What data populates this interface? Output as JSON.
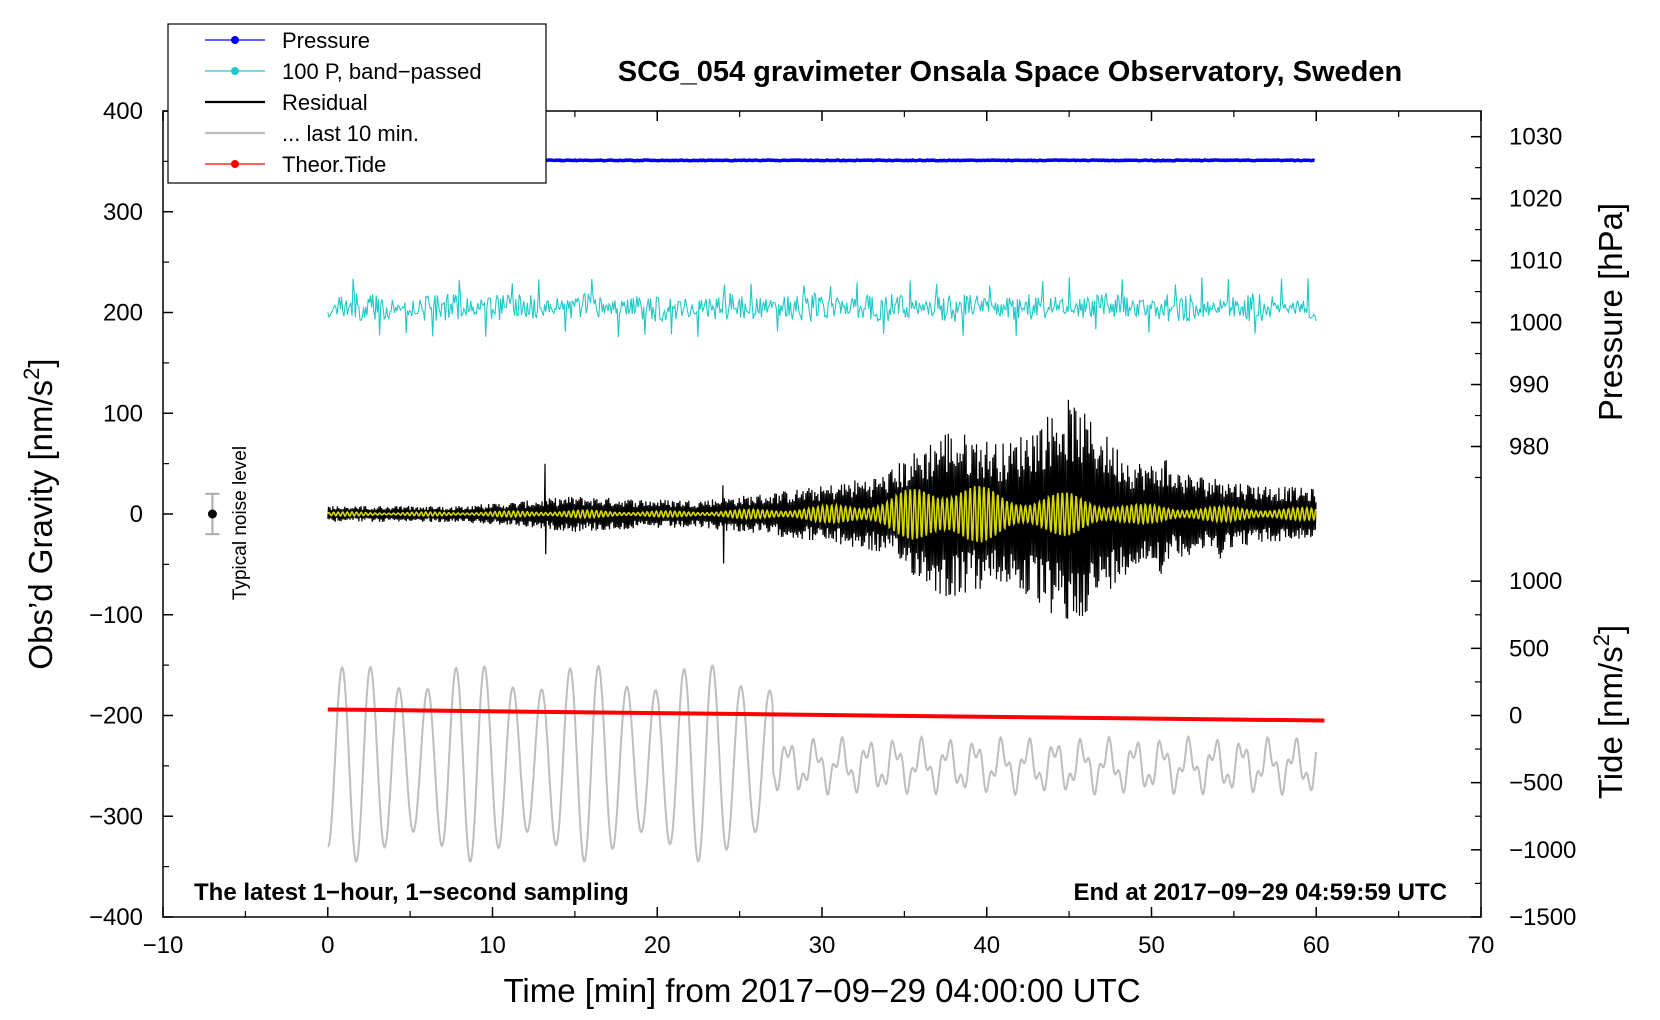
{
  "chart_data": {
    "type": "line",
    "title": "SCG_054 gravimeter Onsala Space Observatory, Sweden",
    "xlabel": "Time [min] from 2017−09−29 04:00:00 UTC",
    "ylabel": "Obs’d Gravity [nm/s²]",
    "ylabel_main": "Obs’d Gravity [nm/s",
    "ylabel_sup": "2",
    "ylabel_close": "]",
    "right_label_pressure": "Pressure [hPa]",
    "right_label_tide_main": "Tide [nm/s",
    "right_label_tide_sup": "2",
    "right_label_tide_close": "]",
    "xlim": [
      -10,
      70
    ],
    "ylim": [
      -400,
      400
    ],
    "x_ticks": [
      -10,
      0,
      10,
      20,
      30,
      40,
      50,
      60,
      70
    ],
    "x_tick_labels": [
      "−10",
      "0",
      "10",
      "20",
      "30",
      "40",
      "50",
      "60",
      "70"
    ],
    "y_ticks": [
      -400,
      -300,
      -200,
      -100,
      0,
      100,
      200,
      300,
      400
    ],
    "y_tick_labels": [
      "−400",
      "−300",
      "−200",
      "−100",
      "0",
      "100",
      "200",
      "300",
      "400"
    ],
    "pressure_axis": {
      "values": [
        980,
        990,
        1000,
        1010,
        1020,
        1030
      ],
      "labels": [
        "980",
        "990",
        "1000",
        "1010",
        "1020",
        "1030"
      ],
      "gravity_at_1000": 190,
      "gravity_per_hPa": 6.15
    },
    "tide_axis": {
      "values": [
        -1500,
        -1000,
        -500,
        0,
        500,
        1000
      ],
      "labels": [
        "−1500",
        "−1000",
        "−500",
        "0",
        "500",
        "1000"
      ],
      "gravity_at_0": -200,
      "gravity_per_unit": 0.1333
    },
    "legend": [
      {
        "label": "Pressure",
        "color": "#0000ff",
        "style": "line-dot"
      },
      {
        "label": "100 P, band−passed",
        "color": "#20c8c8",
        "style": "line-dot"
      },
      {
        "label": "Residual",
        "color": "#000000",
        "style": "line"
      },
      {
        "label": "... last 10 min.",
        "color": "#bebebe",
        "style": "line"
      },
      {
        "label": "Theor.Tide",
        "color": "#ff0000",
        "style": "line-dot"
      }
    ],
    "annotations": {
      "bottom_left": "The latest 1−hour, 1−second sampling",
      "bottom_right": "End at 2017−09−29 04:59:59 UTC",
      "noise_label": "Typical noise level"
    },
    "noise_bar": {
      "x": -7,
      "center": 0,
      "half_range": 20
    },
    "series": [
      {
        "name": "Pressure",
        "color": "#0000ff",
        "x_range": [
          0,
          60
        ],
        "gravity_level": 351
      },
      {
        "name": "100 P, band−passed",
        "color": "#20c8c8",
        "x_range": [
          0,
          60
        ],
        "center": 205,
        "typical_amplitude": 12,
        "max_dev": 30
      },
      {
        "name": "Residual",
        "color": "#000000",
        "x_range": [
          0,
          60
        ],
        "center": 0,
        "envelope_min": [
          0,
          10
        ],
        "envelope_amp": [
          8,
          8,
          8,
          12,
          18,
          15,
          14,
          20,
          28,
          40,
          85,
          70,
          115,
          55,
          40,
          30,
          25
        ]
      },
      {
        "name": "Residual filtered",
        "color": "#d7d700",
        "x_range": [
          0,
          60
        ],
        "center": 0,
        "envelope_amp": [
          2,
          2,
          2,
          3,
          4,
          3,
          3,
          5,
          8,
          15,
          40,
          20,
          22,
          10,
          8,
          7,
          6
        ]
      },
      {
        "name": "... last 10 min.",
        "color": "#bebebe",
        "x_range": [
          0,
          60
        ],
        "big_oscillation": {
          "x_end": 27,
          "period_min": 1.73,
          "low": -345,
          "high": -148
        },
        "small_oscillation": {
          "x_start": 27,
          "low": -275,
          "high": -225
        }
      },
      {
        "name": "Theor.Tide",
        "color": "#ff0000",
        "x": [
          0,
          60.5
        ],
        "y": [
          -194,
          -205
        ]
      }
    ]
  }
}
